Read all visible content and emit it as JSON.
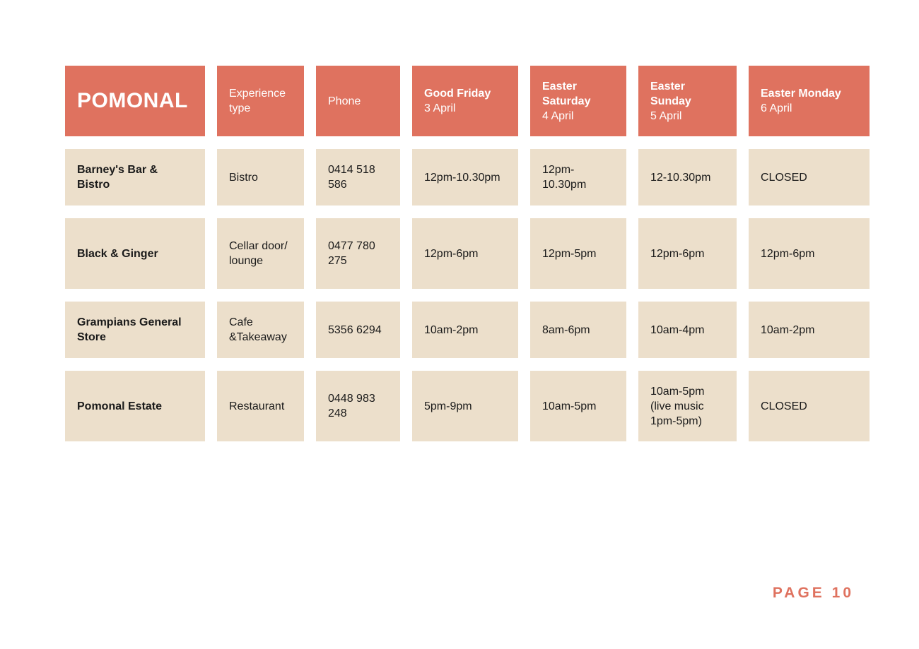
{
  "brand": "POMONAL",
  "columns": {
    "experience": "Experience type",
    "phone": "Phone",
    "days": [
      {
        "name": "Good Friday",
        "date": "3 April"
      },
      {
        "name": "Easter Saturday",
        "date": "4 April"
      },
      {
        "name": "Easter Sunday",
        "date": "5 April"
      },
      {
        "name": "Easter Monday",
        "date": "6 April"
      }
    ]
  },
  "rows": [
    {
      "venue": "Barney's Bar & Bistro",
      "type": "Bistro",
      "phone": "0414 518 586",
      "hours": [
        "12pm-10.30pm",
        "12pm-10.30pm",
        "12-10.30pm",
        "CLOSED"
      ]
    },
    {
      "venue": "Black & Ginger",
      "type": "Cellar door/ lounge",
      "phone": "0477 780 275",
      "hours": [
        "12pm-6pm",
        "12pm-5pm",
        "12pm-6pm",
        "12pm-6pm"
      ]
    },
    {
      "venue": "Grampians General Store",
      "type": "Cafe &Takeaway",
      "phone": "5356 6294",
      "hours": [
        "10am-2pm",
        "8am-6pm",
        "10am-4pm",
        "10am-2pm"
      ]
    },
    {
      "venue": "Pomonal Estate",
      "type": "Restaurant",
      "phone": "0448 983 248",
      "hours": [
        "5pm-9pm",
        "10am-5pm",
        "10am-5pm (live music 1pm-5pm)",
        "CLOSED"
      ]
    }
  ],
  "page_label": "PAGE 10",
  "colors": {
    "accent": "#df725f",
    "cell": "#ecdfcb"
  }
}
